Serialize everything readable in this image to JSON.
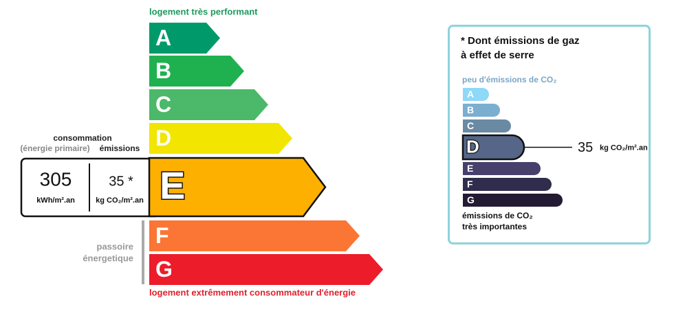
{
  "energy": {
    "top_label": "logement très performant",
    "bottom_label": "logement extrêmement consommateur d'énergie",
    "classes": [
      {
        "letter": "A",
        "color": "#009a6a"
      },
      {
        "letter": "B",
        "color": "#1fb14f"
      },
      {
        "letter": "C",
        "color": "#4cb86a"
      },
      {
        "letter": "D",
        "color": "#f2e500"
      },
      {
        "letter": "E",
        "color": "#fdb000",
        "active": true
      },
      {
        "letter": "F",
        "color": "#fb7534"
      },
      {
        "letter": "G",
        "color": "#ed1c2b"
      }
    ],
    "consumption": {
      "heading": "consommation",
      "subheading": "(énergie primaire)",
      "value": "305",
      "unit": "kWh/m².an"
    },
    "emissions": {
      "heading": "émissions",
      "value": "35 *",
      "unit": "kg CO₂/m².an"
    },
    "passoire": [
      "passoire",
      "énergetique"
    ]
  },
  "climate": {
    "title": [
      "* Dont émissions de gaz",
      "à effet de serre"
    ],
    "top_label": "peu d'émissions de CO₂",
    "bottom_label": [
      "émissions de CO₂",
      "très importantes"
    ],
    "classes": [
      {
        "letter": "A",
        "color": "#8ed8f8"
      },
      {
        "letter": "B",
        "color": "#7aafd0"
      },
      {
        "letter": "C",
        "color": "#6a8aa3"
      },
      {
        "letter": "D",
        "color": "#556688",
        "active": true
      },
      {
        "letter": "E",
        "color": "#46406b"
      },
      {
        "letter": "F",
        "color": "#302c4c"
      },
      {
        "letter": "G",
        "color": "#231a33"
      }
    ],
    "value": "35",
    "unit": "kg CO₂/m².an"
  }
}
